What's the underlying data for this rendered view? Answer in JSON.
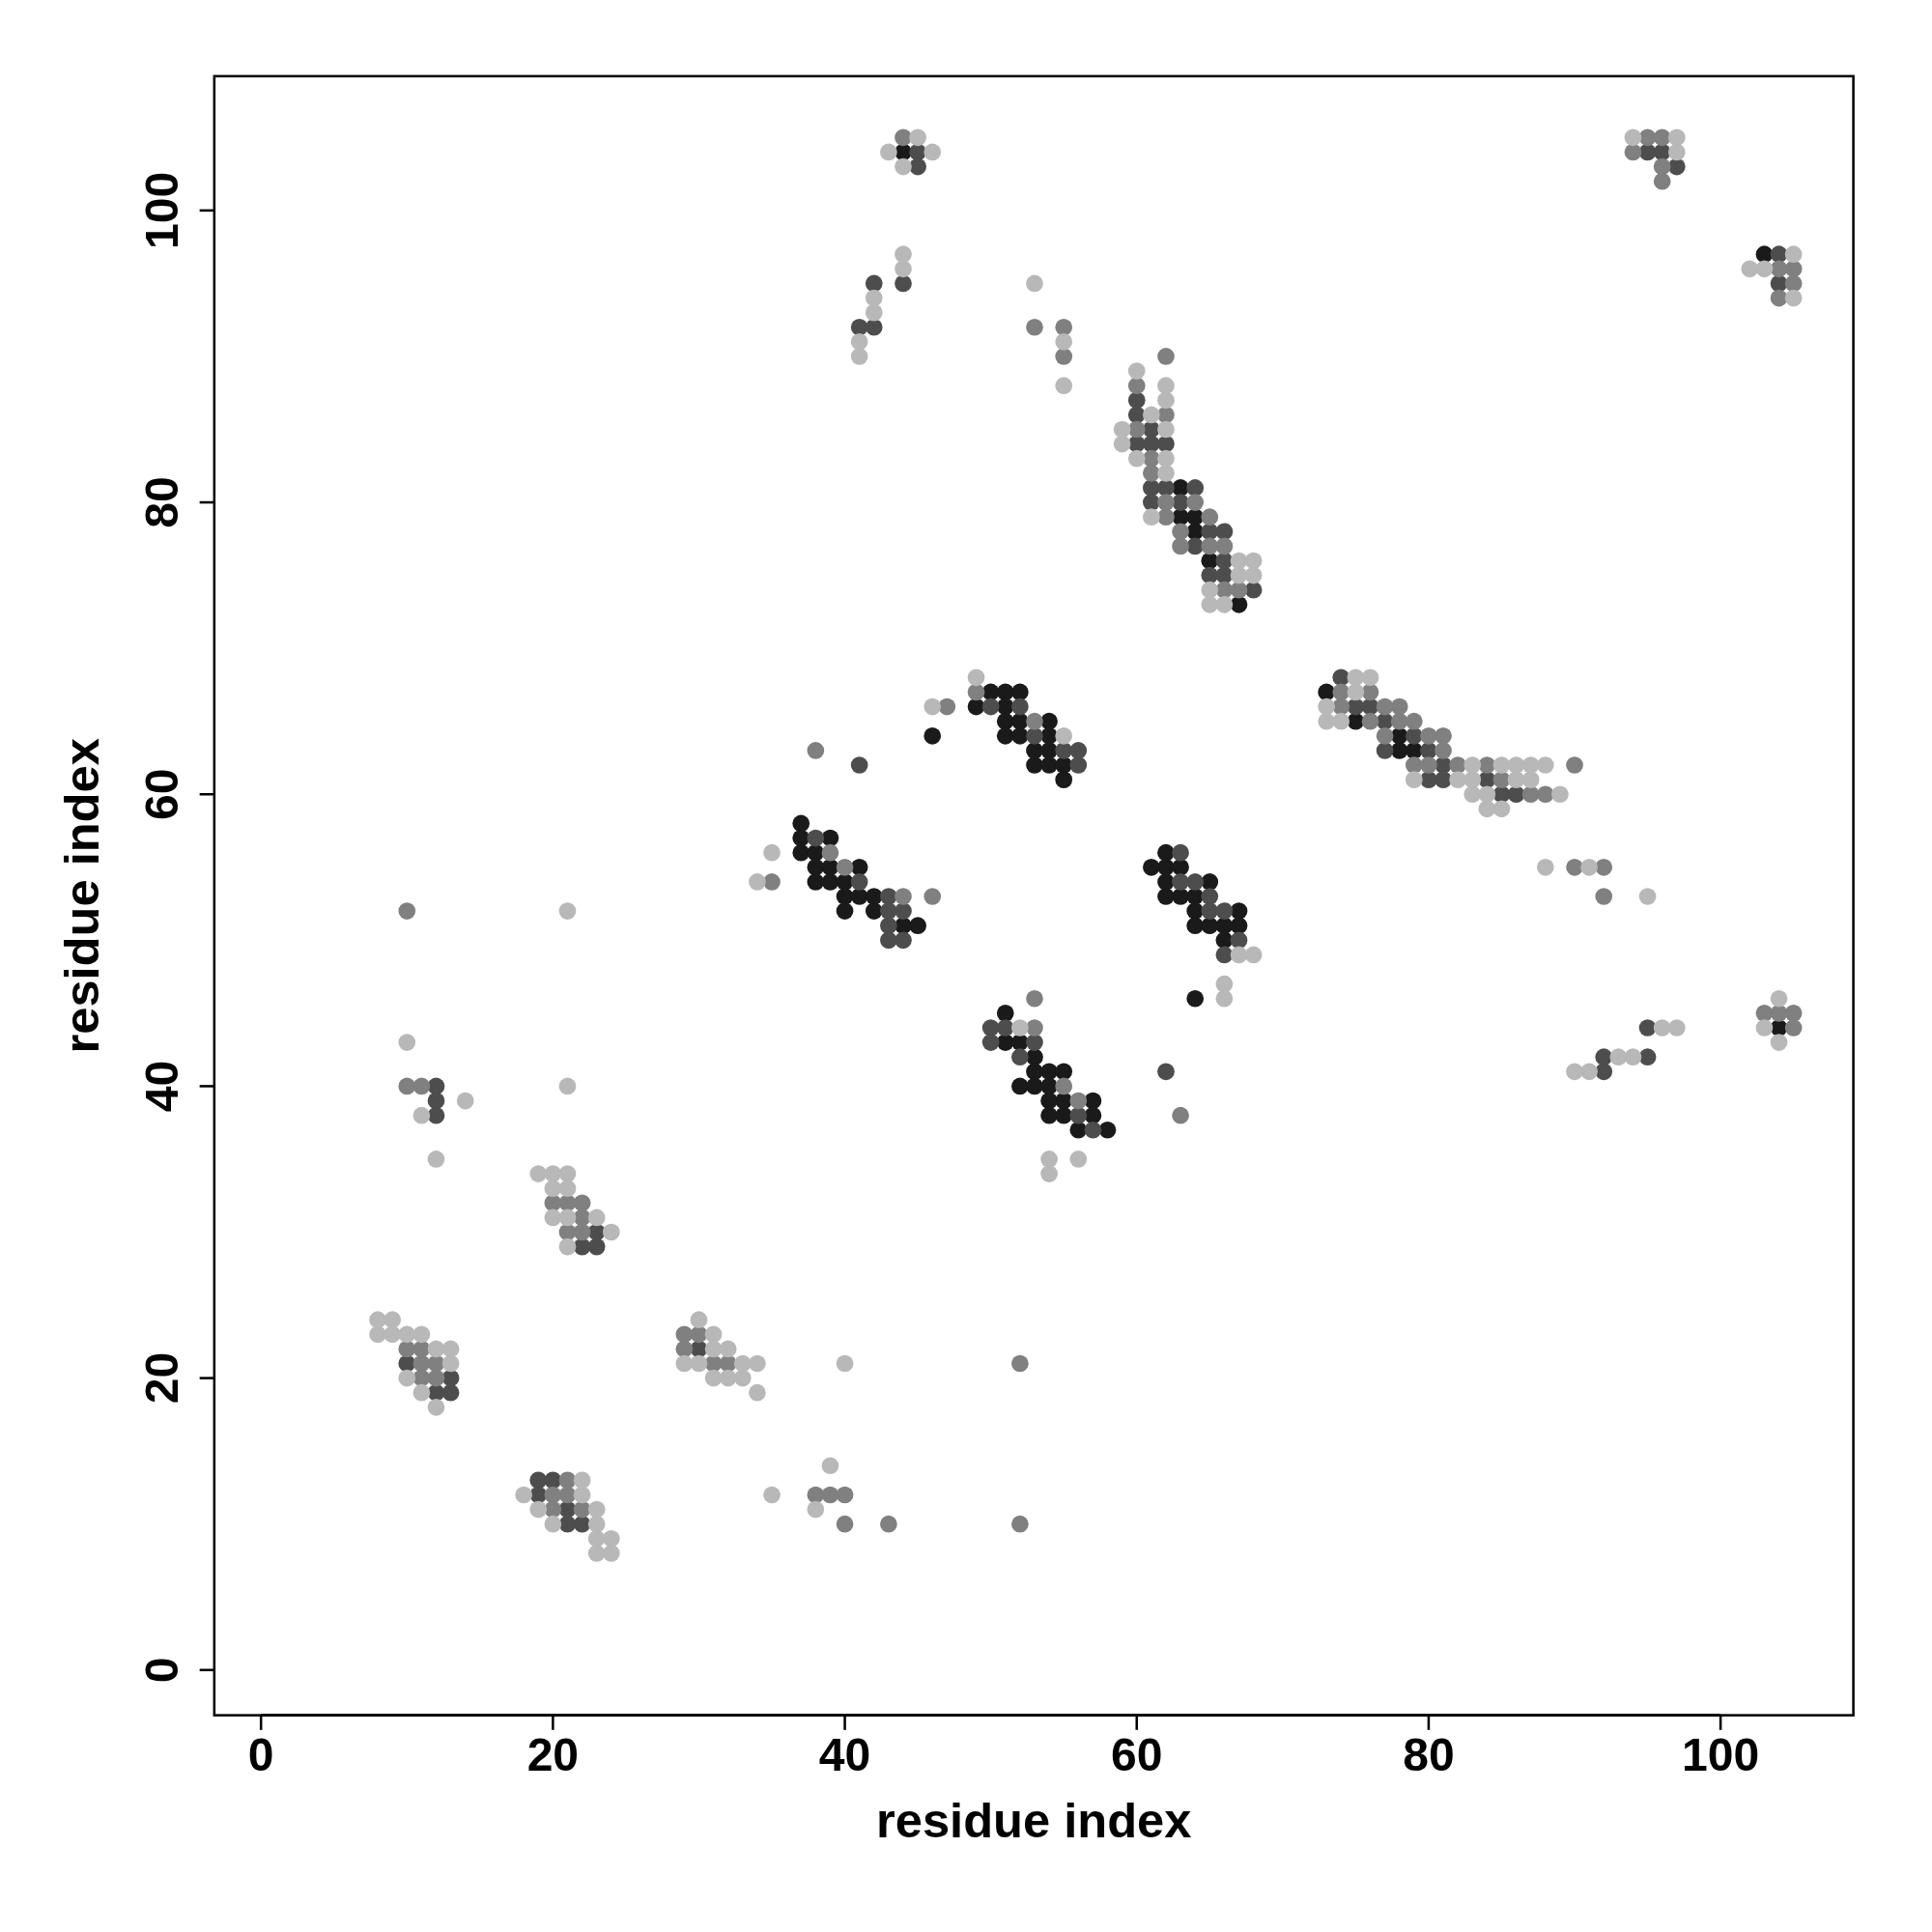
{
  "chart_data": {
    "type": "scatter",
    "xlabel": "residue index",
    "ylabel": "residue index",
    "xlim": [
      -3.2,
      109.1
    ],
    "ylim": [
      -3.1,
      109.2
    ],
    "xticks": [
      0,
      20,
      40,
      60,
      80,
      100
    ],
    "yticks": [
      0,
      20,
      40,
      60,
      80,
      100
    ],
    "grid": false,
    "marker": "circle",
    "series": [
      {
        "color": "#1a1a1a",
        "x": [
          37,
          37,
          39,
          37,
          38,
          38,
          39,
          41,
          38,
          39,
          40,
          40,
          41,
          42,
          40,
          42,
          44,
          45,
          46,
          50,
          51,
          52,
          49,
          51,
          51,
          52,
          54,
          51,
          52,
          54,
          53,
          54,
          53,
          54,
          55,
          55,
          51,
          51,
          52,
          53,
          53,
          54,
          55,
          52,
          53,
          54,
          54,
          55,
          57,
          54,
          55,
          57,
          56,
          58,
          62,
          61,
          62,
          63,
          62,
          65,
          62,
          63,
          64,
          64,
          67,
          64,
          65,
          66,
          67,
          66,
          64,
          63,
          63,
          64,
          64,
          65,
          67,
          44,
          73,
          75,
          78,
          78,
          79,
          104,
          103
        ],
        "values": [
          58,
          57,
          57,
          56,
          56,
          55,
          55,
          55,
          54,
          54,
          54,
          53,
          53,
          53,
          52,
          52,
          51,
          51,
          64,
          67,
          67,
          67,
          66,
          66,
          65,
          65,
          65,
          64,
          64,
          64,
          63,
          63,
          62,
          62,
          62,
          61,
          45,
          43,
          43,
          42,
          41,
          41,
          41,
          40,
          40,
          40,
          39,
          39,
          39,
          38,
          38,
          38,
          37,
          37,
          56,
          55,
          55,
          55,
          54,
          54,
          53,
          53,
          53,
          52,
          52,
          51,
          51,
          51,
          51,
          50,
          46,
          81,
          79,
          79,
          78,
          76,
          73,
          104,
          67,
          65,
          64,
          63,
          63,
          44,
          97
        ]
      },
      {
        "color": "#4d4d4d",
        "x": [
          10,
          13,
          12,
          13,
          19,
          20,
          19,
          21,
          21,
          22,
          30,
          23,
          22,
          23,
          12,
          12,
          12,
          38,
          41,
          43,
          43,
          44,
          43,
          43,
          44,
          41,
          50,
          52,
          53,
          55,
          56,
          56,
          50,
          51,
          50,
          53,
          52,
          56,
          57,
          63,
          63,
          64,
          65,
          65,
          66,
          67,
          66,
          62,
          60,
          60,
          61,
          60,
          61,
          62,
          61,
          62,
          64,
          61,
          63,
          65,
          66,
          64,
          66,
          65,
          66,
          68,
          45,
          45,
          42,
          44,
          41,
          42,
          74,
          75,
          76,
          77,
          79,
          77,
          80,
          81,
          80,
          81,
          84,
          85,
          86,
          92,
          92,
          95,
          95,
          95,
          96,
          97,
          104,
          104
        ],
        "values": [
          21,
          20,
          19,
          19,
          13,
          13,
          12,
          11,
          10,
          10,
          22,
          30,
          29,
          29,
          40,
          39,
          38,
          57,
          54,
          53,
          52,
          52,
          51,
          50,
          50,
          62,
          66,
          66,
          64,
          63,
          63,
          62,
          44,
          44,
          43,
          43,
          42,
          38,
          37,
          56,
          54,
          54,
          53,
          52,
          52,
          50,
          49,
          41,
          87,
          86,
          85,
          84,
          84,
          84,
          81,
          81,
          81,
          80,
          80,
          78,
          78,
          77,
          76,
          75,
          75,
          74,
          104,
          103,
          95,
          95,
          92,
          92,
          68,
          66,
          66,
          65,
          64,
          63,
          63,
          62,
          61,
          61,
          61,
          60,
          60,
          41,
          42,
          42,
          44,
          104,
          104,
          103,
          97,
          95
        ]
      },
      {
        "color": "#808080",
        "x": [
          10,
          11,
          11,
          12,
          11,
          12,
          21,
          20,
          21,
          20,
          22,
          29,
          30,
          29,
          31,
          32,
          20,
          21,
          22,
          22,
          21,
          22,
          10,
          10,
          11,
          38,
          39,
          40,
          40,
          43,
          52,
          52,
          39,
          40,
          44,
          46,
          35,
          38,
          47,
          49,
          53,
          53,
          53,
          55,
          56,
          63,
          62,
          60,
          62,
          60,
          61,
          61,
          62,
          64,
          62,
          65,
          63,
          63,
          65,
          66,
          66,
          67,
          44,
          53,
          55,
          55,
          74,
          76,
          74,
          77,
          78,
          76,
          78,
          79,
          77,
          80,
          81,
          81,
          79,
          80,
          82,
          84,
          90,
          85,
          87,
          88,
          90,
          92,
          92,
          103,
          104,
          105,
          105,
          95,
          96,
          94,
          96,
          96,
          104,
          105,
          105,
          104
        ],
        "values": [
          22,
          22,
          21,
          21,
          20,
          20,
          13,
          12,
          12,
          11,
          11,
          23,
          23,
          22,
          21,
          21,
          32,
          32,
          32,
          31,
          30,
          30,
          52,
          40,
          40,
          12,
          12,
          12,
          10,
          10,
          21,
          10,
          56,
          55,
          53,
          53,
          54,
          63,
          66,
          67,
          65,
          46,
          44,
          40,
          39,
          38,
          90,
          88,
          86,
          85,
          83,
          82,
          80,
          80,
          79,
          79,
          78,
          77,
          77,
          77,
          74,
          74,
          105,
          92,
          92,
          90,
          67,
          67,
          66,
          66,
          66,
          65,
          65,
          65,
          64,
          64,
          64,
          63,
          62,
          62,
          62,
          62,
          62,
          61,
          60,
          60,
          55,
          55,
          53,
          45,
          45,
          45,
          44,
          105,
          105,
          104,
          103,
          102,
          96,
          96,
          95,
          94
        ]
      },
      {
        "color": "#b8b8b8",
        "x": [
          8,
          9,
          8,
          9,
          10,
          11,
          12,
          13,
          13,
          10,
          11,
          12,
          22,
          18,
          22,
          19,
          23,
          20,
          23,
          23,
          24,
          23,
          24,
          30,
          31,
          31,
          32,
          29,
          30,
          33,
          34,
          31,
          32,
          33,
          34,
          19,
          20,
          21,
          20,
          21,
          20,
          21,
          23,
          24,
          21,
          21,
          10,
          11,
          14,
          12,
          21,
          35,
          38,
          39,
          40,
          34,
          35,
          46,
          49,
          55,
          52,
          54,
          54,
          56,
          67,
          68,
          66,
          66,
          60,
          62,
          62,
          61,
          59,
          62,
          59,
          60,
          62,
          62,
          61,
          67,
          68,
          67,
          68,
          65,
          65,
          66,
          45,
          43,
          46,
          44,
          44,
          44,
          42,
          42,
          41,
          41,
          53,
          55,
          55,
          75,
          76,
          75,
          73,
          73,
          74,
          83,
          85,
          86,
          87,
          88,
          79,
          82,
          83,
          86,
          87,
          83,
          84,
          89,
          84,
          85,
          88,
          91,
          95,
          90,
          91,
          93,
          94,
          96,
          97,
          104,
          103,
          104,
          94,
          97,
          97,
          102,
          103,
          105,
          105
        ],
        "values": [
          24,
          24,
          23,
          23,
          23,
          23,
          22,
          22,
          21,
          20,
          19,
          18,
          13,
          12,
          12,
          11,
          11,
          10,
          10,
          9,
          9,
          8,
          8,
          24,
          23,
          22,
          22,
          21,
          21,
          21,
          21,
          20,
          20,
          20,
          19,
          34,
          34,
          34,
          33,
          33,
          31,
          31,
          31,
          30,
          29,
          52,
          43,
          38,
          39,
          35,
          40,
          12,
          11,
          14,
          21,
          54,
          56,
          66,
          68,
          64,
          44,
          35,
          34,
          35,
          49,
          49,
          47,
          46,
          89,
          88,
          87,
          86,
          85,
          85,
          84,
          83,
          83,
          82,
          79,
          76,
          76,
          75,
          75,
          74,
          73,
          73,
          105,
          104,
          104,
          103,
          97,
          96,
          94,
          93,
          91,
          90,
          95,
          91,
          88,
          68,
          68,
          67,
          66,
          65,
          65,
          62,
          62,
          62,
          62,
          62,
          61,
          61,
          61,
          61,
          61,
          60,
          60,
          60,
          59,
          59,
          55,
          55,
          53,
          41,
          41,
          42,
          42,
          44,
          44,
          46,
          44,
          43,
          105,
          105,
          104,
          96,
          96,
          97,
          94
        ]
      }
    ]
  }
}
